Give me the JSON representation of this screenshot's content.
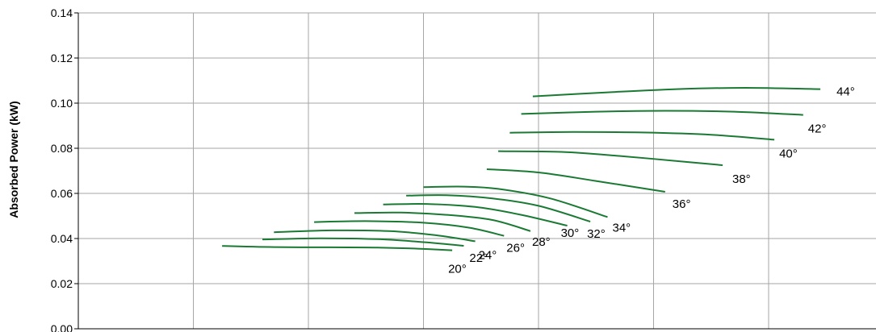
{
  "chart_data": {
    "type": "line",
    "title": "",
    "xlabel": "",
    "ylabel": "Absorbed Power (kW)",
    "xlim": [
      0,
      7
    ],
    "ylim": [
      0,
      0.14
    ],
    "yticks": [
      {
        "value": 0.0,
        "label": "0.00"
      },
      {
        "value": 0.02,
        "label": "0.02"
      },
      {
        "value": 0.04,
        "label": "0.04"
      },
      {
        "value": 0.06,
        "label": "0.06"
      },
      {
        "value": 0.08,
        "label": "0.08"
      },
      {
        "value": 0.1,
        "label": "0.10"
      },
      {
        "value": 0.12,
        "label": "0.12"
      },
      {
        "value": 0.14,
        "label": "0.14"
      }
    ],
    "grid": true,
    "line_color": "#1a7a33",
    "grid_color": "#a6a6a6",
    "series": [
      {
        "name": "20°",
        "x": [
          1.25,
          1.7,
          2.2,
          2.6,
          2.95,
          3.25
        ],
        "y": [
          0.0367,
          0.0362,
          0.0361,
          0.036,
          0.0355,
          0.0348
        ]
      },
      {
        "name": "22°",
        "x": [
          1.6,
          2.1,
          2.6,
          3.0,
          3.35
        ],
        "y": [
          0.0396,
          0.0401,
          0.0397,
          0.0384,
          0.0368
        ]
      },
      {
        "name": "24°",
        "x": [
          1.7,
          2.2,
          2.7,
          3.1,
          3.45
        ],
        "y": [
          0.0428,
          0.0436,
          0.0433,
          0.0415,
          0.0388
        ]
      },
      {
        "name": "26°",
        "x": [
          2.05,
          2.5,
          3.0,
          3.4,
          3.7
        ],
        "y": [
          0.0473,
          0.0477,
          0.047,
          0.0448,
          0.0412
        ]
      },
      {
        "name": "28°",
        "x": [
          2.4,
          2.8,
          3.2,
          3.6,
          3.93
        ],
        "y": [
          0.0513,
          0.0515,
          0.0505,
          0.0482,
          0.0433
        ]
      },
      {
        "name": "30°",
        "x": [
          2.65,
          3.05,
          3.45,
          3.85,
          4.25
        ],
        "y": [
          0.0551,
          0.0553,
          0.054,
          0.0505,
          0.0457
        ]
      },
      {
        "name": "32°",
        "x": [
          2.85,
          3.2,
          3.6,
          4.0,
          4.45
        ],
        "y": [
          0.059,
          0.0592,
          0.0578,
          0.0545,
          0.0475
        ]
      },
      {
        "name": "34°",
        "x": [
          3.0,
          3.35,
          3.65,
          4.1,
          4.6
        ],
        "y": [
          0.0628,
          0.063,
          0.062,
          0.0578,
          0.0495
        ]
      },
      {
        "name": "36°",
        "x": [
          3.55,
          4.0,
          4.5,
          5.1
        ],
        "y": [
          0.0707,
          0.0693,
          0.0655,
          0.0607
        ]
      },
      {
        "name": "38°",
        "x": [
          3.65,
          4.2,
          4.7,
          5.3,
          5.6
        ],
        "y": [
          0.0787,
          0.0784,
          0.0766,
          0.0739,
          0.0725
        ]
      },
      {
        "name": "40°",
        "x": [
          3.75,
          4.3,
          4.9,
          5.5,
          6.05
        ],
        "y": [
          0.0869,
          0.0872,
          0.087,
          0.086,
          0.0838
        ]
      },
      {
        "name": "42°",
        "x": [
          3.85,
          4.5,
          5.1,
          5.7,
          6.3
        ],
        "y": [
          0.0952,
          0.0962,
          0.0966,
          0.0962,
          0.0948
        ]
      },
      {
        "name": "44°",
        "x": [
          3.95,
          4.6,
          5.2,
          5.8,
          6.45
        ],
        "y": [
          0.103,
          0.1048,
          0.1062,
          0.1068,
          0.1062
        ]
      }
    ]
  }
}
